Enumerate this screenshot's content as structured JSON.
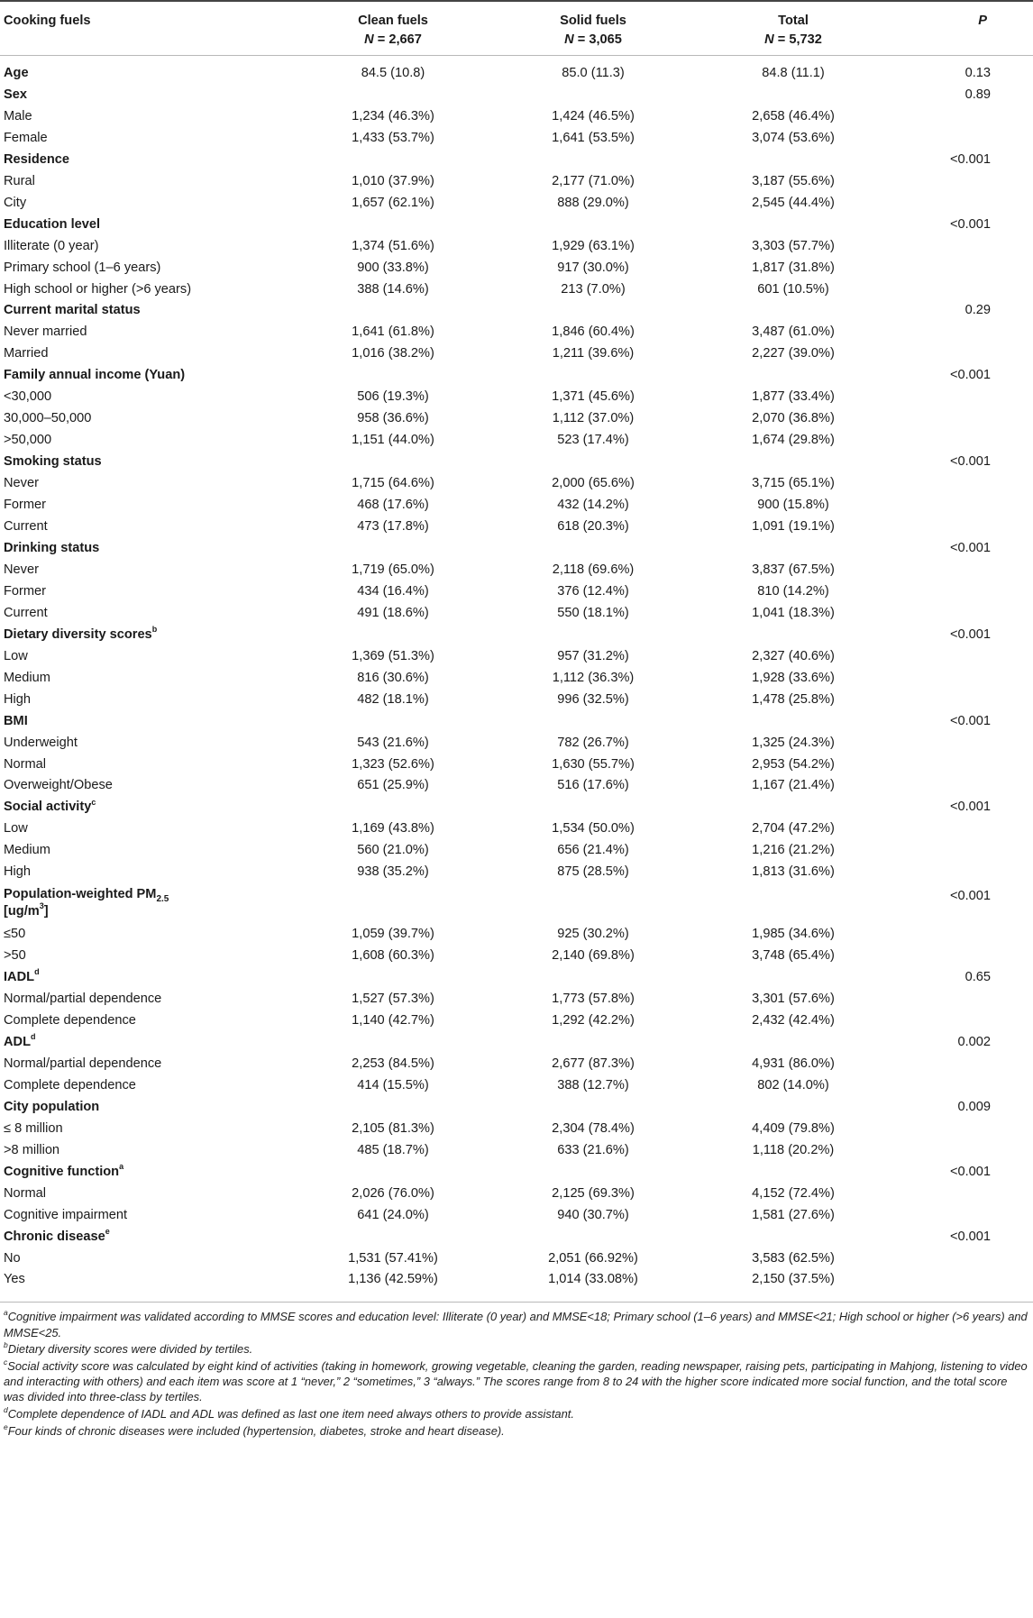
{
  "header": {
    "col0": "Cooking fuels",
    "col1": "Clean fuels",
    "col2": "Solid fuels",
    "col3": "Total",
    "col4": "P",
    "n_prefix": "N",
    "n1": "= 2,667",
    "n2": "= 3,065",
    "n3": "= 5,732"
  },
  "rows": [
    {
      "label": "Age",
      "cat": true,
      "v1": "84.5 (10.8)",
      "v2": "85.0 (11.3)",
      "v3": "84.8 (11.1)",
      "p": "0.13"
    },
    {
      "label": "Sex",
      "cat": true,
      "v1": "",
      "v2": "",
      "v3": "",
      "p": "0.89"
    },
    {
      "label": "Male",
      "v1": "1,234 (46.3%)",
      "v2": "1,424 (46.5%)",
      "v3": "2,658 (46.4%)",
      "p": ""
    },
    {
      "label": "Female",
      "v1": "1,433 (53.7%)",
      "v2": "1,641 (53.5%)",
      "v3": "3,074 (53.6%)",
      "p": ""
    },
    {
      "label": "Residence",
      "cat": true,
      "v1": "",
      "v2": "",
      "v3": "",
      "p": "<0.001"
    },
    {
      "label": "Rural",
      "v1": "1,010 (37.9%)",
      "v2": "2,177 (71.0%)",
      "v3": "3,187 (55.6%)",
      "p": ""
    },
    {
      "label": "City",
      "v1": "1,657 (62.1%)",
      "v2": "888 (29.0%)",
      "v3": "2,545 (44.4%)",
      "p": ""
    },
    {
      "label": "Education level",
      "cat": true,
      "v1": "",
      "v2": "",
      "v3": "",
      "p": "<0.001"
    },
    {
      "label": "Illiterate (0 year)",
      "v1": "1,374 (51.6%)",
      "v2": "1,929 (63.1%)",
      "v3": "3,303 (57.7%)",
      "p": ""
    },
    {
      "label": "Primary school (1–6 years)",
      "v1": "900 (33.8%)",
      "v2": "917 (30.0%)",
      "v3": "1,817 (31.8%)",
      "p": ""
    },
    {
      "label": "High school or higher (>6 years)",
      "v1": "388 (14.6%)",
      "v2": "213 (7.0%)",
      "v3": "601 (10.5%)",
      "p": ""
    },
    {
      "label": "Current marital status",
      "cat": true,
      "v1": "",
      "v2": "",
      "v3": "",
      "p": "0.29"
    },
    {
      "label": "Never married",
      "v1": "1,641 (61.8%)",
      "v2": "1,846 (60.4%)",
      "v3": "3,487 (61.0%)",
      "p": ""
    },
    {
      "label": "Married",
      "v1": "1,016 (38.2%)",
      "v2": "1,211 (39.6%)",
      "v3": "2,227 (39.0%)",
      "p": ""
    },
    {
      "label": "Family annual income (Yuan)",
      "cat": true,
      "v1": "",
      "v2": "",
      "v3": "",
      "p": "<0.001"
    },
    {
      "label": "<30,000",
      "v1": "506 (19.3%)",
      "v2": "1,371 (45.6%)",
      "v3": "1,877 (33.4%)",
      "p": ""
    },
    {
      "label": "30,000–50,000",
      "v1": "958 (36.6%)",
      "v2": "1,112 (37.0%)",
      "v3": "2,070 (36.8%)",
      "p": ""
    },
    {
      "label": ">50,000",
      "v1": "1,151 (44.0%)",
      "v2": "523 (17.4%)",
      "v3": "1,674 (29.8%)",
      "p": ""
    },
    {
      "label": "Smoking status",
      "cat": true,
      "v1": "",
      "v2": "",
      "v3": "",
      "p": "<0.001"
    },
    {
      "label": "Never",
      "v1": "1,715 (64.6%)",
      "v2": "2,000 (65.6%)",
      "v3": "3,715 (65.1%)",
      "p": ""
    },
    {
      "label": "Former",
      "v1": "468 (17.6%)",
      "v2": "432 (14.2%)",
      "v3": "900 (15.8%)",
      "p": ""
    },
    {
      "label": "Current",
      "v1": "473 (17.8%)",
      "v2": "618 (20.3%)",
      "v3": "1,091 (19.1%)",
      "p": ""
    },
    {
      "label": "Drinking status",
      "cat": true,
      "v1": "",
      "v2": "",
      "v3": "",
      "p": "<0.001"
    },
    {
      "label": "Never",
      "v1": "1,719 (65.0%)",
      "v2": "2,118 (69.6%)",
      "v3": "3,837 (67.5%)",
      "p": ""
    },
    {
      "label": "Former",
      "v1": "434 (16.4%)",
      "v2": "376 (12.4%)",
      "v3": "810 (14.2%)",
      "p": ""
    },
    {
      "label": "Current",
      "v1": "491 (18.6%)",
      "v2": "550 (18.1%)",
      "v3": "1,041 (18.3%)",
      "p": ""
    },
    {
      "label": "Dietary diversity scores",
      "sup": "b",
      "cat": true,
      "v1": "",
      "v2": "",
      "v3": "",
      "p": "<0.001"
    },
    {
      "label": "Low",
      "v1": "1,369 (51.3%)",
      "v2": "957 (31.2%)",
      "v3": "2,327 (40.6%)",
      "p": ""
    },
    {
      "label": "Medium",
      "v1": "816 (30.6%)",
      "v2": "1,112 (36.3%)",
      "v3": "1,928 (33.6%)",
      "p": ""
    },
    {
      "label": "High",
      "v1": "482 (18.1%)",
      "v2": "996 (32.5%)",
      "v3": "1,478 (25.8%)",
      "p": ""
    },
    {
      "label": "BMI",
      "cat": true,
      "v1": "",
      "v2": "",
      "v3": "",
      "p": "<0.001"
    },
    {
      "label": "Underweight",
      "v1": "543 (21.6%)",
      "v2": "782 (26.7%)",
      "v3": "1,325 (24.3%)",
      "p": ""
    },
    {
      "label": "Normal",
      "v1": "1,323 (52.6%)",
      "v2": "1,630 (55.7%)",
      "v3": "2,953 (54.2%)",
      "p": ""
    },
    {
      "label": "Overweight/Obese",
      "v1": "651 (25.9%)",
      "v2": "516 (17.6%)",
      "v3": "1,167 (21.4%)",
      "p": ""
    },
    {
      "label": "Social activity",
      "sup": "c",
      "cat": true,
      "v1": "",
      "v2": "",
      "v3": "",
      "p": "<0.001"
    },
    {
      "label": "Low",
      "v1": "1,169 (43.8%)",
      "v2": "1,534 (50.0%)",
      "v3": "2,704 (47.2%)",
      "p": ""
    },
    {
      "label": "Medium",
      "v1": "560 (21.0%)",
      "v2": "656 (21.4%)",
      "v3": "1,216 (21.2%)",
      "p": ""
    },
    {
      "label": "High",
      "v1": "938 (35.2%)",
      "v2": "875 (28.5%)",
      "v3": "1,813 (31.6%)",
      "p": ""
    },
    {
      "label": "Population-weighted PM",
      "sub": "2.5",
      "line2": "[ug/m",
      "line2sup": "3",
      "line2end": "]",
      "cat": true,
      "tall": true,
      "v1": "",
      "v2": "",
      "v3": "",
      "p": "<0.001"
    },
    {
      "label": "≤50",
      "v1": "1,059 (39.7%)",
      "v2": "925 (30.2%)",
      "v3": "1,985 (34.6%)",
      "p": ""
    },
    {
      "label": ">50",
      "v1": "1,608 (60.3%)",
      "v2": "2,140 (69.8%)",
      "v3": "3,748 (65.4%)",
      "p": ""
    },
    {
      "label": "IADL",
      "sup": "d",
      "cat": true,
      "v1": "",
      "v2": "",
      "v3": "",
      "p": "0.65"
    },
    {
      "label": "Normal/partial dependence",
      "v1": "1,527 (57.3%)",
      "v2": "1,773 (57.8%)",
      "v3": "3,301 (57.6%)",
      "p": ""
    },
    {
      "label": "Complete dependence",
      "v1": "1,140 (42.7%)",
      "v2": "1,292 (42.2%)",
      "v3": "2,432 (42.4%)",
      "p": ""
    },
    {
      "label": "ADL",
      "sup": "d",
      "cat": true,
      "v1": "",
      "v2": "",
      "v3": "",
      "p": "0.002"
    },
    {
      "label": "Normal/partial dependence",
      "v1": "2,253 (84.5%)",
      "v2": "2,677 (87.3%)",
      "v3": "4,931 (86.0%)",
      "p": ""
    },
    {
      "label": "Complete dependence",
      "v1": "414 (15.5%)",
      "v2": "388 (12.7%)",
      "v3": "802 (14.0%)",
      "p": ""
    },
    {
      "label": "City population",
      "cat": true,
      "v1": "",
      "v2": "",
      "v3": "",
      "p": "0.009"
    },
    {
      "label": "≤ 8 million",
      "v1": "2,105 (81.3%)",
      "v2": "2,304 (78.4%)",
      "v3": "4,409 (79.8%)",
      "p": ""
    },
    {
      "label": ">8 million",
      "v1": "485 (18.7%)",
      "v2": "633 (21.6%)",
      "v3": "1,118 (20.2%)",
      "p": ""
    },
    {
      "label": "Cognitive function",
      "sup": "a",
      "cat": true,
      "v1": "",
      "v2": "",
      "v3": "",
      "p": "<0.001"
    },
    {
      "label": "Normal",
      "v1": "2,026 (76.0%)",
      "v2": "2,125 (69.3%)",
      "v3": "4,152 (72.4%)",
      "p": ""
    },
    {
      "label": "Cognitive impairment",
      "v1": "641 (24.0%)",
      "v2": "940 (30.7%)",
      "v3": "1,581 (27.6%)",
      "p": ""
    },
    {
      "label": "Chronic disease",
      "sup": "e",
      "cat": true,
      "v1": "",
      "v2": "",
      "v3": "",
      "p": "<0.001"
    },
    {
      "label": "No",
      "v1": "1,531 (57.41%)",
      "v2": "2,051 (66.92%)",
      "v3": "3,583 (62.5%)",
      "p": ""
    },
    {
      "label": "Yes",
      "v1": "1,136 (42.59%)",
      "v2": "1,014 (33.08%)",
      "v3": "2,150 (37.5%)",
      "p": ""
    }
  ],
  "footnotes": [
    {
      "mark": "a",
      "text": "Cognitive impairment was validated according to MMSE scores and education level: Illiterate (0 year) and MMSE<18; Primary school (1–6 years) and MMSE<21; High school or higher (>6 years) and MMSE<25."
    },
    {
      "mark": "b",
      "text": "Dietary diversity scores were divided by tertiles."
    },
    {
      "mark": "c",
      "text": "Social activity score was calculated by eight kind of activities (taking in homework, growing vegetable, cleaning the garden, reading newspaper, raising pets, participating in Mahjong, listening to video and interacting with others) and each item was score at 1 “never,” 2 “sometimes,” 3 “always.” The scores range from 8 to 24 with the higher score indicated more social function, and the total score was divided into three-class by tertiles."
    },
    {
      "mark": "d",
      "text": "Complete dependence of IADL and ADL was defined as last one item need always others to provide assistant."
    },
    {
      "mark": "e",
      "text": "Four kinds of chronic diseases were included (hypertension, diabetes, stroke and heart disease)."
    }
  ]
}
